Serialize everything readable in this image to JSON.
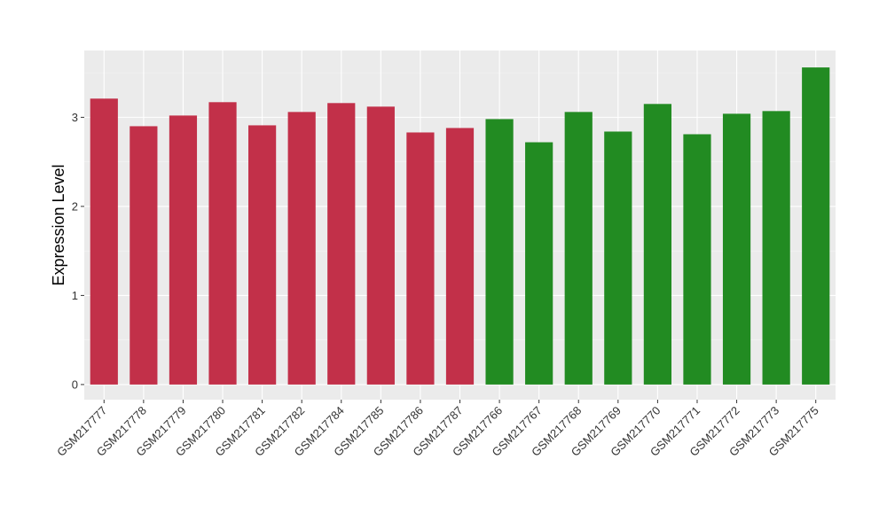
{
  "chart_data": {
    "type": "bar",
    "ylabel": "Expression Level",
    "xlabel": "",
    "ylim": [
      -0.17,
      3.75
    ],
    "yticks": [
      0,
      1,
      2,
      3
    ],
    "grid": true,
    "panel_background": "#EBEBEB",
    "categories": [
      "GSM217777",
      "GSM217778",
      "GSM217779",
      "GSM217780",
      "GSM217781",
      "GSM217782",
      "GSM217784",
      "GSM217785",
      "GSM217786",
      "GSM217787",
      "GSM217766",
      "GSM217767",
      "GSM217768",
      "GSM217769",
      "GSM217770",
      "GSM217771",
      "GSM217772",
      "GSM217773",
      "GSM217775"
    ],
    "values": [
      3.21,
      2.9,
      3.02,
      3.17,
      2.91,
      3.06,
      3.16,
      3.12,
      2.83,
      2.88,
      2.98,
      2.72,
      3.06,
      2.84,
      3.15,
      2.81,
      3.04,
      3.07,
      3.56
    ],
    "colors": [
      "#C23049",
      "#C23049",
      "#C23049",
      "#C23049",
      "#C23049",
      "#C23049",
      "#C23049",
      "#C23049",
      "#C23049",
      "#C23049",
      "#228B22",
      "#228B22",
      "#228B22",
      "#228B22",
      "#228B22",
      "#228B22",
      "#228B22",
      "#228B22",
      "#228B22"
    ]
  }
}
